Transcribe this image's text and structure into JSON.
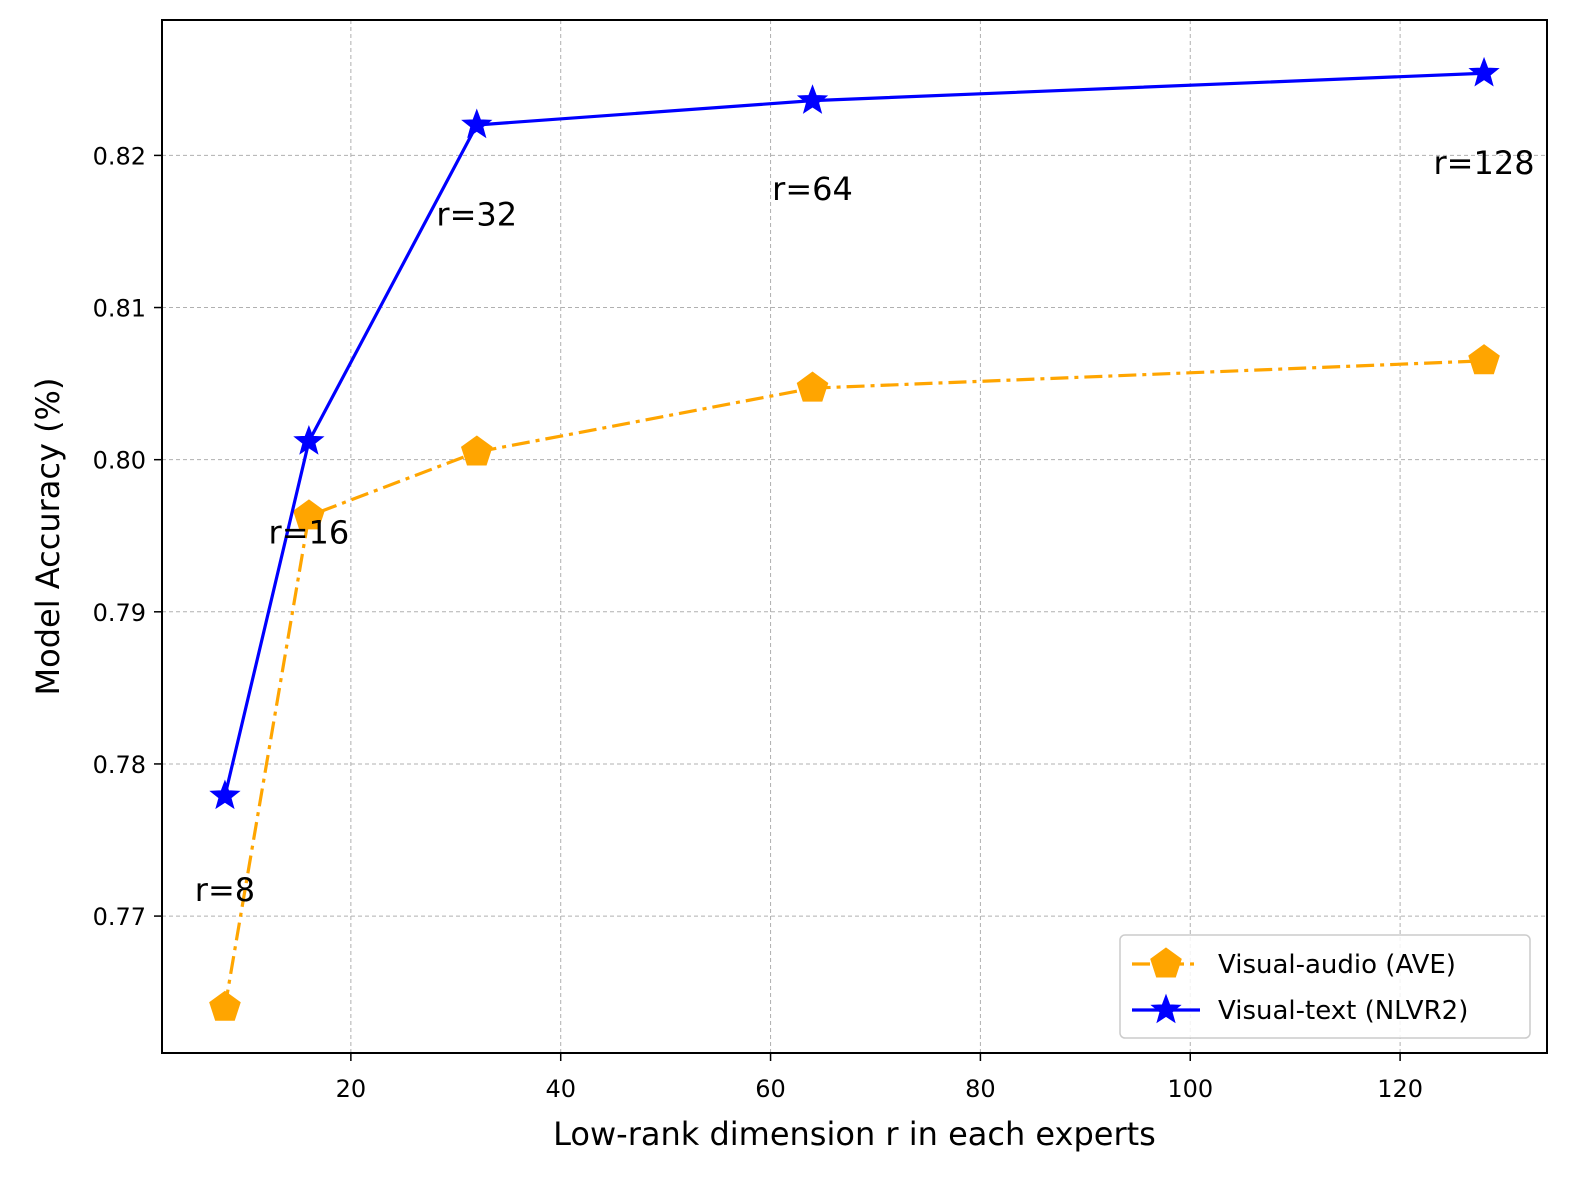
{
  "chart_data": {
    "type": "line",
    "title": "",
    "xlabel": "Low-rank dimension r in each experts",
    "ylabel": "Model Accuracy (%)",
    "xlim": [
      2.0,
      134.0
    ],
    "ylim": [
      0.761,
      0.8289
    ],
    "xticks": [
      20,
      40,
      60,
      80,
      100,
      120
    ],
    "yticks": [
      0.77,
      0.78,
      0.79,
      0.8,
      0.81,
      0.82
    ],
    "ytick_labels": [
      "0.77",
      "0.78",
      "0.79",
      "0.80",
      "0.81",
      "0.82"
    ],
    "grid": true,
    "legend_position": "lower-right",
    "x": [
      8,
      16,
      32,
      64,
      128
    ],
    "series": [
      {
        "name": "Visual-audio (AVE)",
        "color": "#FFA500",
        "marker": "pentagon",
        "linestyle": "dashdot",
        "values": [
          0.764,
          0.7963,
          0.8005,
          0.8047,
          0.8065
        ]
      },
      {
        "name": "Visual-text (NLVR2)",
        "color": "#0000FF",
        "marker": "star",
        "linestyle": "solid",
        "values": [
          0.7779,
          0.8012,
          0.822,
          0.8236,
          0.8254
        ]
      }
    ],
    "annotations": [
      {
        "text": "r=8",
        "x": 8,
        "y": 0.7717
      },
      {
        "text": "r=16",
        "x": 16,
        "y": 0.7952
      },
      {
        "text": "r=32",
        "x": 32,
        "y": 0.8161
      },
      {
        "text": "r=64",
        "x": 64,
        "y": 0.8178
      },
      {
        "text": "r=128",
        "x": 128,
        "y": 0.8195
      }
    ]
  }
}
